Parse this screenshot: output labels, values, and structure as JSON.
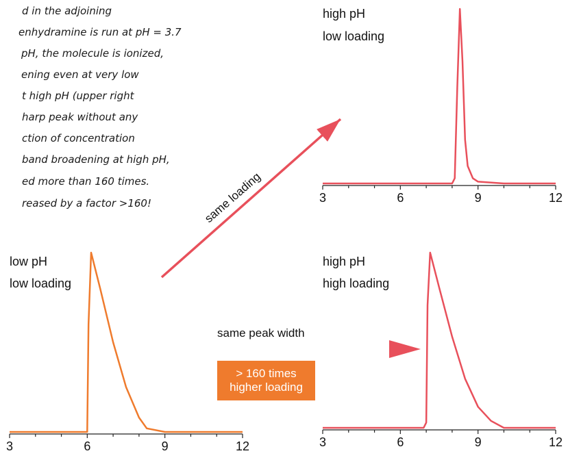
{
  "colors": {
    "low_ph_trace": "#ef7b2d",
    "high_ph_trace": "#e8505b",
    "callout_background": "#ef7b2d",
    "text": "#1a1a1a"
  },
  "paragraph_lines": [
    "d in the adjoining",
    "enhydramine is run at pH = 3.7",
    "pH, the molecule is ionized,",
    "ening even at very low",
    "t high pH (upper right",
    "harp peak without any",
    "ction of concentration",
    "band broadening at high pH,",
    "ed more than 160 times.",
    "reased by a factor >160!"
  ],
  "arrows": {
    "diagonal_label": "same loading",
    "horizontal_label": "same peak width"
  },
  "callout": {
    "line1": "> 160 times",
    "line2": "higher loading"
  },
  "chart_data": [
    {
      "type": "line",
      "panel": "upper-right",
      "labels": [
        "high pH",
        "low loading"
      ],
      "x_ticks": [
        "3",
        "6",
        "9",
        "12"
      ],
      "xlim": [
        3,
        12
      ],
      "ylim": [
        0,
        1
      ],
      "series": [
        {
          "x": [
            3,
            6,
            8.0,
            8.1,
            8.2,
            8.3,
            8.4,
            8.5,
            8.6,
            8.8,
            9.0,
            10,
            12
          ],
          "y": [
            0.0,
            0.0,
            0.0,
            0.03,
            0.55,
            1.0,
            0.7,
            0.25,
            0.1,
            0.03,
            0.01,
            0.0,
            0.0
          ]
        }
      ]
    },
    {
      "type": "line",
      "panel": "lower-left",
      "labels": [
        "low pH",
        "low loading"
      ],
      "x_ticks": [
        "3",
        "6",
        "9",
        "12"
      ],
      "xlim": [
        3,
        12
      ],
      "ylim": [
        0,
        1
      ],
      "series": [
        {
          "x": [
            3,
            6.0,
            6.05,
            6.15,
            6.5,
            7.0,
            7.5,
            8.0,
            8.3,
            9,
            12
          ],
          "y": [
            0.0,
            0.0,
            0.6,
            1.0,
            0.8,
            0.5,
            0.25,
            0.08,
            0.02,
            0.0,
            0.0
          ]
        }
      ]
    },
    {
      "type": "line",
      "panel": "lower-right",
      "labels": [
        "high pH",
        "high loading"
      ],
      "x_ticks": [
        "3",
        "6",
        "9",
        "12"
      ],
      "xlim": [
        3,
        12
      ],
      "ylim": [
        0,
        1
      ],
      "series": [
        {
          "x": [
            3,
            6.9,
            7.0,
            7.05,
            7.15,
            7.5,
            8.0,
            8.5,
            9.0,
            9.5,
            10,
            12
          ],
          "y": [
            0.0,
            0.0,
            0.03,
            0.7,
            1.0,
            0.8,
            0.52,
            0.28,
            0.12,
            0.04,
            0.0,
            0.0
          ]
        }
      ]
    }
  ]
}
